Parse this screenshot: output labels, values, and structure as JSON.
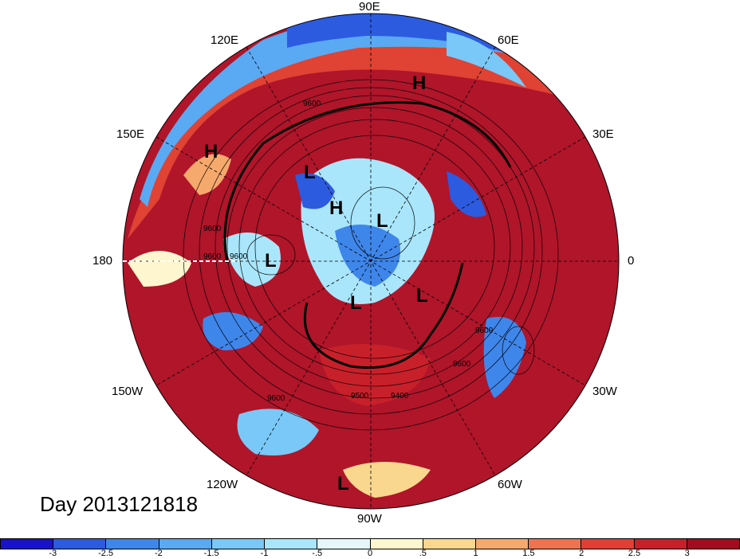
{
  "title": "Day 2013121818",
  "longitude_labels": [
    {
      "text": "90E"
    },
    {
      "text": "60E"
    },
    {
      "text": "120E"
    },
    {
      "text": "30E"
    },
    {
      "text": "150E"
    },
    {
      "text": "180"
    },
    {
      "text": "0"
    },
    {
      "text": "150W"
    },
    {
      "text": "30W"
    },
    {
      "text": "120W"
    },
    {
      "text": "60W"
    },
    {
      "text": "90W"
    }
  ],
  "pressure_centers": [
    {
      "text": "H"
    },
    {
      "text": "H"
    },
    {
      "text": "H"
    },
    {
      "text": "L"
    },
    {
      "text": "L"
    },
    {
      "text": "L"
    },
    {
      "text": "L"
    },
    {
      "text": "L"
    },
    {
      "text": "L"
    }
  ],
  "contour_labels": [
    "9600",
    "9600",
    "9600",
    "9600",
    "9600",
    "9500",
    "9400",
    "9600",
    "9600"
  ],
  "colorbar": {
    "colors": [
      "#1a12c9",
      "#2c5be0",
      "#3f86ea",
      "#5aa9f3",
      "#79c8f7",
      "#a9e6fb",
      "#e6f7fb",
      "#fdf6cf",
      "#fad78f",
      "#f6a96c",
      "#ef7351",
      "#e23e35",
      "#c8202a",
      "#a30c20"
    ],
    "tick_labels": [
      "-3",
      "-2.5",
      "-2",
      "-1.5",
      "-1",
      "-.5",
      "0",
      ".5",
      "1",
      "1.5",
      "2",
      "2.5",
      "3"
    ]
  }
}
